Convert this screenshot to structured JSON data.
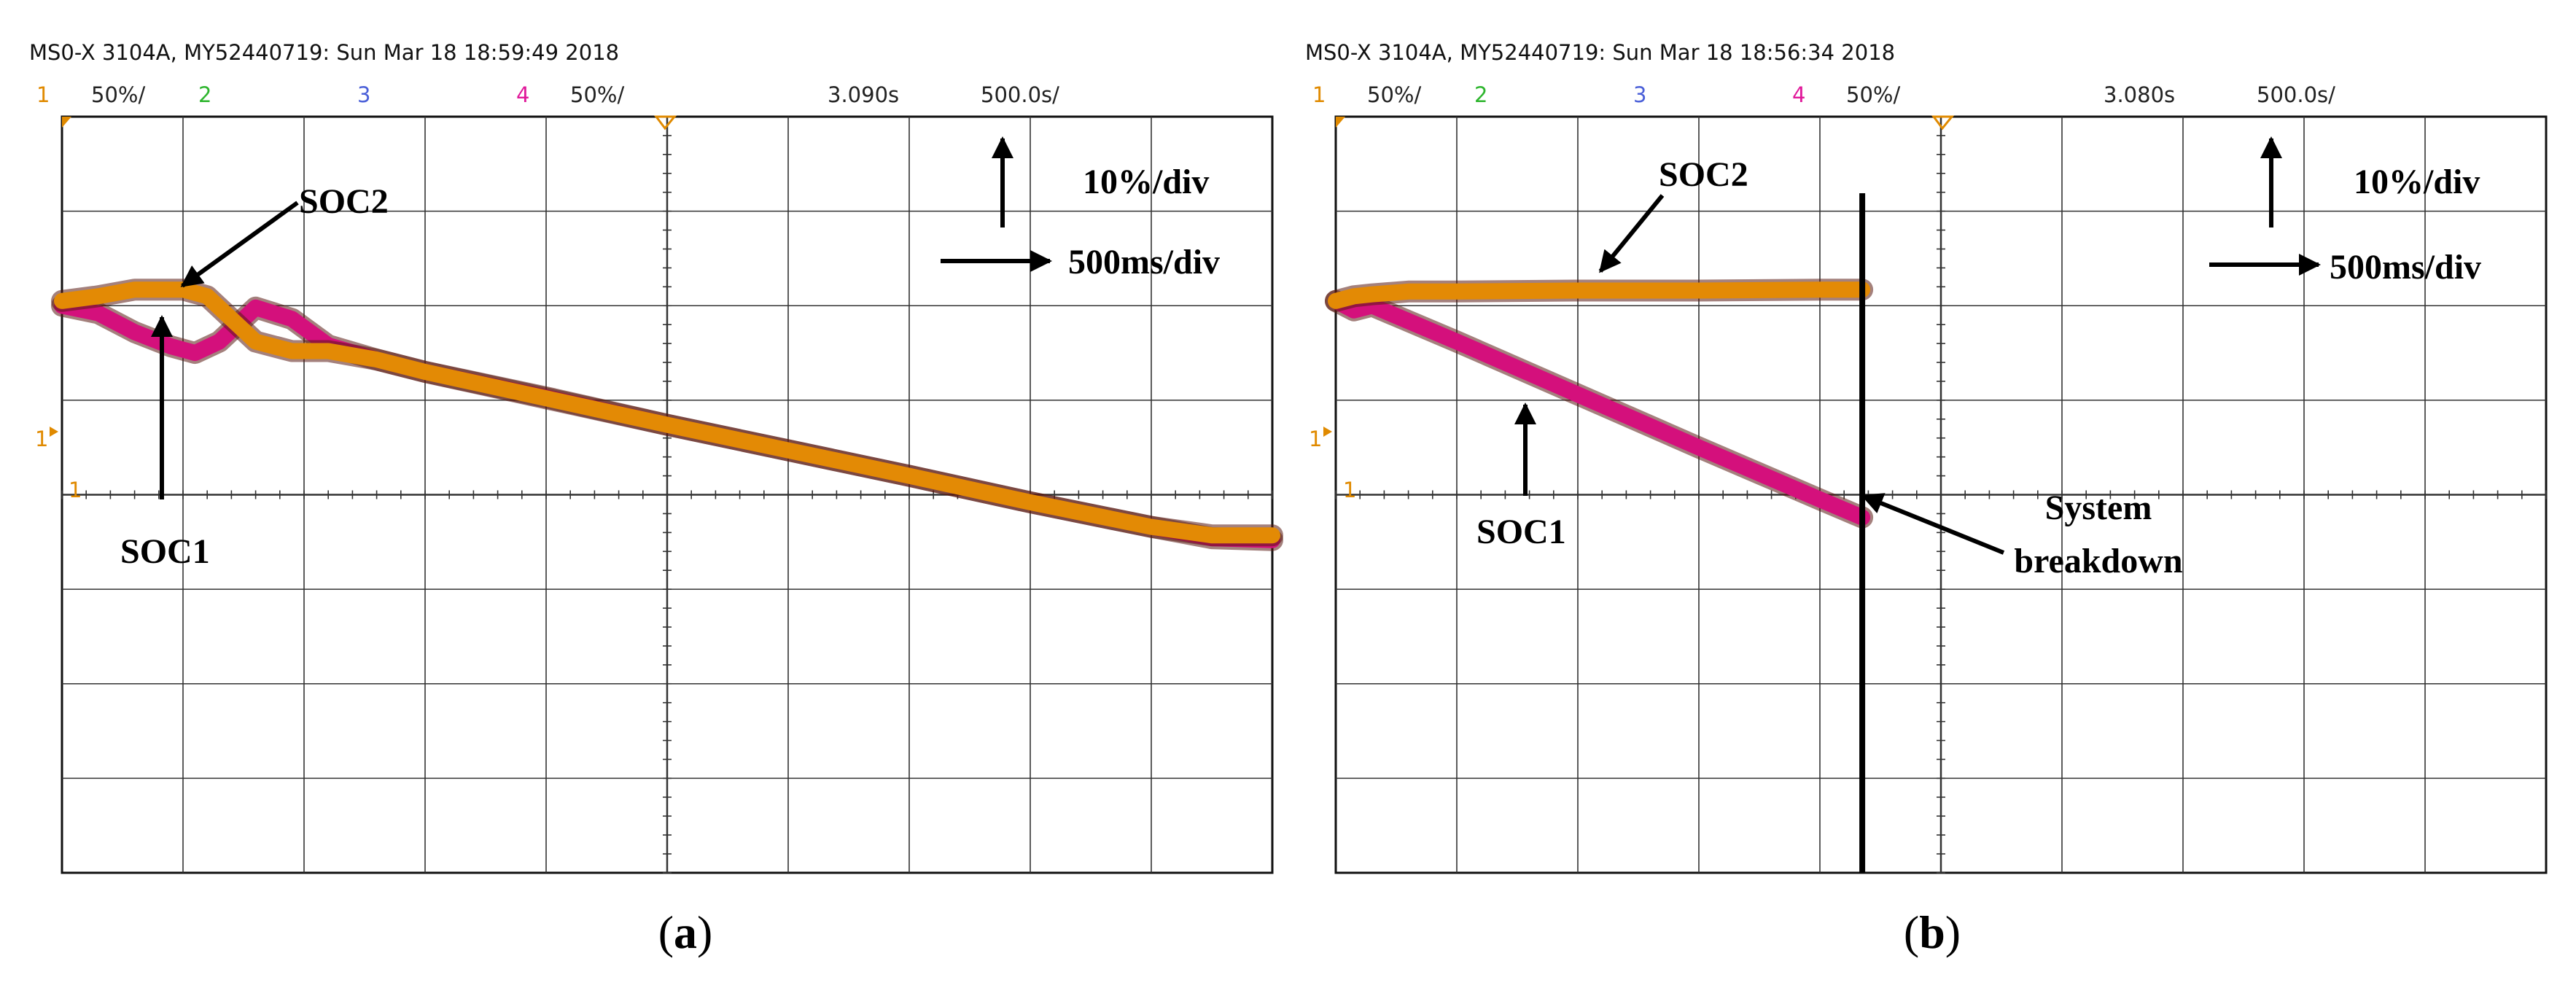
{
  "chart_data": [
    {
      "type": "line",
      "panel_label": "a",
      "header": "MS0-X 3104A, MY52440719: Sun Mar 18 18:59:49 2018",
      "channels": [
        {
          "num": "1",
          "scale": "50%/",
          "color": "#e08a00"
        },
        {
          "num": "2",
          "scale": "",
          "color": "#2db52d"
        },
        {
          "num": "3",
          "scale": "",
          "color": "#4a5fd8"
        },
        {
          "num": "4",
          "scale": "50%/",
          "color": "#e0199a"
        }
      ],
      "time_offset": "3.090s",
      "time_scale": "500.0s/",
      "ground_marker": "1",
      "annotations": {
        "vertical": "10%/div",
        "horizontal": "500ms/div",
        "soc2_label": "SOC2",
        "soc1_label": "SOC1"
      },
      "grid": {
        "x_divisions": 10,
        "y_divisions": 8
      },
      "x_range": [
        0,
        10
      ],
      "y_range": [
        0,
        8
      ],
      "series": [
        {
          "name": "SOC1",
          "color": "#d4107c",
          "x": [
            0.0,
            0.3,
            0.6,
            0.9,
            1.1,
            1.3,
            1.6,
            1.9,
            2.2,
            2.6,
            3.0,
            4.0,
            5.0,
            6.0,
            7.0,
            8.0,
            9.0,
            9.5,
            10.0
          ],
          "y": [
            6.0,
            5.92,
            5.72,
            5.57,
            5.5,
            5.62,
            5.98,
            5.86,
            5.58,
            5.43,
            5.3,
            5.03,
            4.74,
            4.47,
            4.2,
            3.92,
            3.66,
            3.54,
            3.52
          ]
        },
        {
          "name": "SOC2",
          "color": "#e38a05",
          "x": [
            0.0,
            0.3,
            0.6,
            1.0,
            1.2,
            1.4,
            1.6,
            1.9,
            2.2,
            2.6,
            3.0,
            4.0,
            5.0,
            6.0,
            7.0,
            8.0,
            9.0,
            9.5,
            10.0
          ],
          "y": [
            6.05,
            6.1,
            6.17,
            6.17,
            6.1,
            5.86,
            5.62,
            5.52,
            5.52,
            5.43,
            5.3,
            5.02,
            4.74,
            4.47,
            4.2,
            3.92,
            3.66,
            3.57,
            3.57
          ]
        }
      ]
    },
    {
      "type": "line",
      "panel_label": "b",
      "header": "MS0-X 3104A, MY52440719: Sun Mar 18 18:56:34 2018",
      "channels": [
        {
          "num": "1",
          "scale": "50%/",
          "color": "#e08a00"
        },
        {
          "num": "2",
          "scale": "",
          "color": "#2db52d"
        },
        {
          "num": "3",
          "scale": "",
          "color": "#4a5fd8"
        },
        {
          "num": "4",
          "scale": "50%/",
          "color": "#e0199a"
        }
      ],
      "time_offset": "3.080s",
      "time_scale": "500.0s/",
      "ground_marker": "1",
      "annotations": {
        "vertical": "10%/div",
        "horizontal": "500ms/div",
        "soc2_label": "SOC2",
        "soc1_label": "SOC1",
        "breakdown_line1": "System",
        "breakdown_line2": "breakdown"
      },
      "breakdown_x": 4.35,
      "grid": {
        "x_divisions": 10,
        "y_divisions": 8
      },
      "x_range": [
        0,
        10
      ],
      "y_range": [
        0,
        8
      ],
      "series": [
        {
          "name": "SOC1",
          "color": "#d4107c",
          "x": [
            0.0,
            0.15,
            0.3,
            1.0,
            2.0,
            3.0,
            4.0,
            4.35
          ],
          "y": [
            6.05,
            5.95,
            6.0,
            5.62,
            5.06,
            4.5,
            3.95,
            3.76
          ]
        },
        {
          "name": "SOC2",
          "color": "#e38a05",
          "x": [
            0.0,
            0.15,
            0.3,
            0.6,
            1.0,
            2.0,
            3.0,
            4.0,
            4.35
          ],
          "y": [
            6.05,
            6.1,
            6.12,
            6.15,
            6.15,
            6.16,
            6.16,
            6.17,
            6.17
          ]
        }
      ]
    }
  ]
}
